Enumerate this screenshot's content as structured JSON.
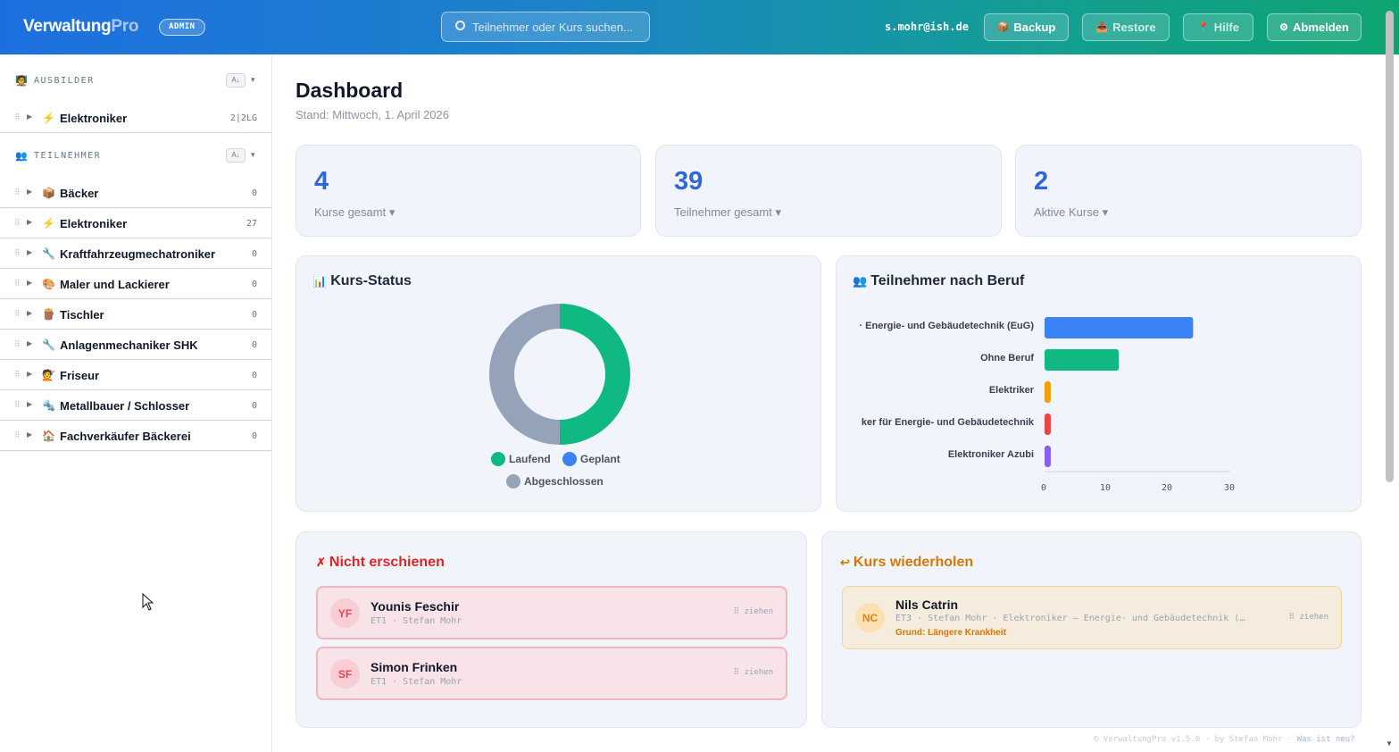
{
  "header": {
    "brand_main": "Verwaltung",
    "brand_accent": "Pro",
    "role_badge": "ADMIN",
    "search_placeholder": "Teilnehmer oder Kurs suchen...",
    "user_email": "s.mohr@ish.de",
    "buttons": {
      "backup": "Backup",
      "restore": "Restore",
      "help": "Hilfe",
      "logout": "Abmelden"
    }
  },
  "sidebar": {
    "ausbilder": {
      "title": "AUSBILDER",
      "sort": "A↓",
      "items": [
        {
          "icon": "⚡",
          "label": "Elektroniker",
          "count": "2|2LG"
        }
      ]
    },
    "teilnehmer": {
      "title": "TEILNEHMER",
      "sort": "A↓",
      "items": [
        {
          "icon": "📦",
          "label": "Bäcker",
          "count": "0"
        },
        {
          "icon": "⚡",
          "label": "Elektroniker",
          "count": "27"
        },
        {
          "icon": "🔧",
          "label": "Kraftfahrzeugmechatroniker",
          "count": "0"
        },
        {
          "icon": "🎨",
          "label": "Maler und Lackierer",
          "count": "0"
        },
        {
          "icon": "🪵",
          "label": "Tischler",
          "count": "0"
        },
        {
          "icon": "🔧",
          "label": "Anlagenmechaniker SHK",
          "count": "0"
        },
        {
          "icon": "💇",
          "label": "Friseur",
          "count": "0"
        },
        {
          "icon": "🔩",
          "label": "Metallbauer / Schlosser",
          "count": "0"
        },
        {
          "icon": "🏠",
          "label": "Fachverkäufer Bäckerei",
          "count": "0"
        }
      ]
    }
  },
  "main": {
    "title": "Dashboard",
    "subtitle": "Stand: Mittwoch, 1. April 2026",
    "stats": [
      {
        "value": "4",
        "label": "Kurse gesamt ▾"
      },
      {
        "value": "39",
        "label": "Teilnehmer gesamt ▾"
      },
      {
        "value": "2",
        "label": "Aktive Kurse ▾"
      }
    ],
    "kurs_status": {
      "title": "Kurs-Status",
      "legend": [
        "Laufend",
        "Geplant",
        "Abgeschlossen"
      ]
    },
    "beruf": {
      "title": "Teilnehmer nach Beruf"
    },
    "nicht_erschienen": {
      "title": "Nicht erschienen",
      "people": [
        {
          "initials": "YF",
          "name": "Younis Feschir",
          "meta": "ET1 · Stefan Mohr",
          "drag": "⠿ ziehen"
        },
        {
          "initials": "SF",
          "name": "Simon Frinken",
          "meta": "ET1 · Stefan Mohr",
          "drag": "⠿ ziehen"
        }
      ]
    },
    "kurs_wiederholen": {
      "title": "Kurs wiederholen",
      "people": [
        {
          "initials": "NC",
          "name": "Nils Catrin",
          "meta": "ET3 · Stefan Mohr · Elektroniker – Energie- und Gebäudetechnik (…",
          "reason": "Grund: Längere Krankheit",
          "drag": "⠿ ziehen"
        }
      ]
    }
  },
  "footer": {
    "text": "© VerwaltungPro v1.5.0 · by Stefan Mohr · ",
    "link": "Was ist neu?"
  },
  "colors": {
    "laufend": "#10b981",
    "geplant": "#3b82f6",
    "abgeschlossen": "#94a3b8",
    "accent": "#2f67d6"
  },
  "chart_data": [
    {
      "type": "pie",
      "categories": [
        "Laufend",
        "Geplant",
        "Abgeschlossen"
      ],
      "values": [
        2,
        0,
        2
      ],
      "legend": "bottom"
    },
    {
      "type": "bar",
      "orientation": "horizontal",
      "categories": [
        "· Energie- und Gebäudetechnik (EuG)",
        "Ohne Beruf",
        "Elektriker",
        "ker für Energie- und Gebäudetechnik",
        "Elektroniker Azubi"
      ],
      "values": [
        24,
        12,
        1,
        1,
        1
      ],
      "xlim": [
        0,
        30
      ],
      "xticks": [
        "0",
        "10",
        "20",
        "30"
      ],
      "colors": [
        "#3b82f6",
        "#10b981",
        "#f59e0b",
        "#ef4444",
        "#8b5cf6"
      ]
    }
  ]
}
